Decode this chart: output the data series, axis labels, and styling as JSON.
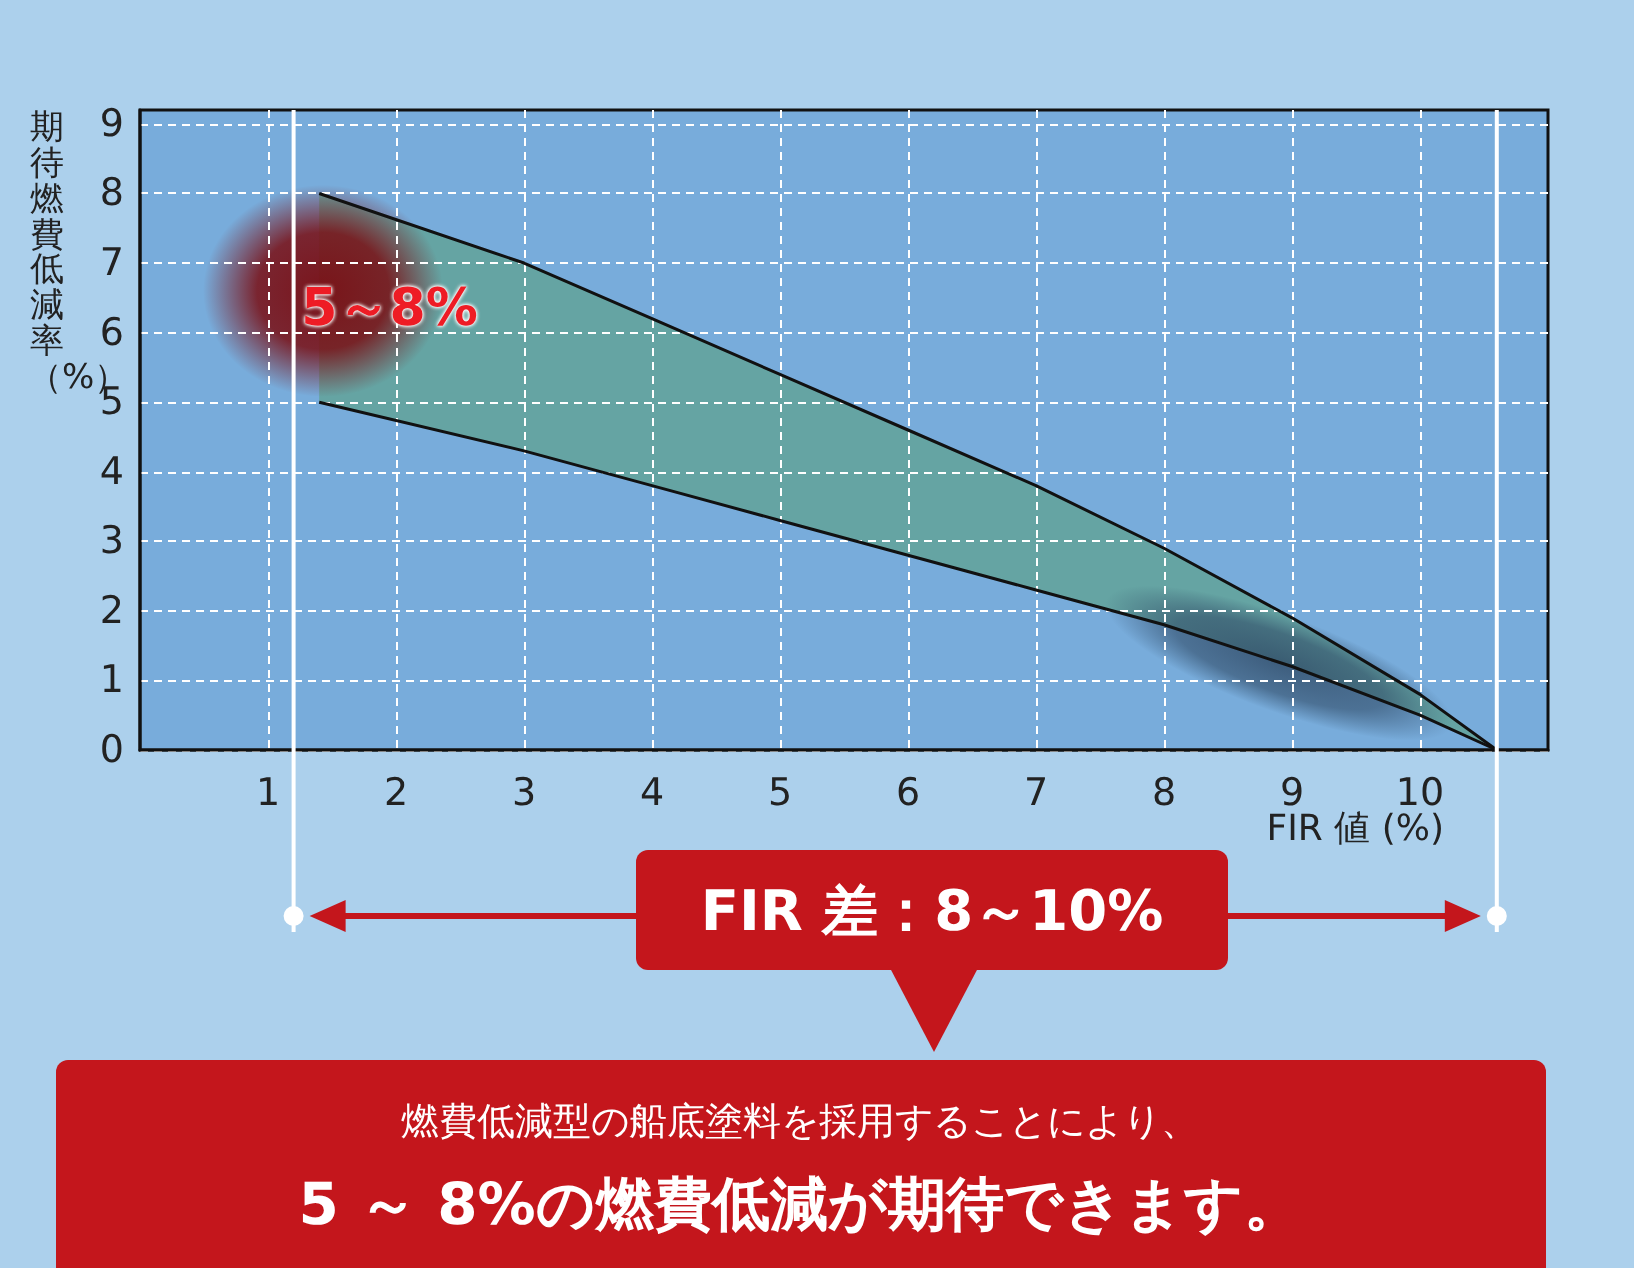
{
  "chart_data": {
    "type": "line",
    "ylabel": "期待燃費低減率（%）",
    "xlabel": "FIR 値 (%)",
    "x": [
      1.4,
      3,
      4,
      5,
      6,
      7,
      8,
      9,
      10,
      10.6
    ],
    "series": [
      {
        "color": "#111111",
        "values": [
          8,
          7,
          6.2,
          5.4,
          4.6,
          3.8,
          2.9,
          1.9,
          0.8,
          0
        ]
      },
      {
        "color": "#111111",
        "values": [
          5,
          4.3,
          3.8,
          3.3,
          2.8,
          2.3,
          1.8,
          1.2,
          0.5,
          0
        ]
      }
    ],
    "xlim": [
      0,
      11
    ],
    "xticks": [
      1,
      2,
      3,
      4,
      5,
      6,
      7,
      8,
      9,
      10
    ],
    "ylim": [
      0,
      9.2
    ],
    "yticks": [
      0,
      1,
      2,
      3,
      4,
      5,
      6,
      7,
      8,
      9
    ],
    "grid": true,
    "ref_lines": [
      {
        "axis": "x",
        "value": 1.2,
        "color": "#ffffff"
      },
      {
        "axis": "x",
        "value": 10.6,
        "color": "#ffffff"
      }
    ],
    "annotations": [
      "5～8%",
      "FIR 差：8～10%",
      "燃費低減型の船底塗料を採用することにより、",
      "5 ～ 8%の燃費低減が期待できます。"
    ]
  }
}
